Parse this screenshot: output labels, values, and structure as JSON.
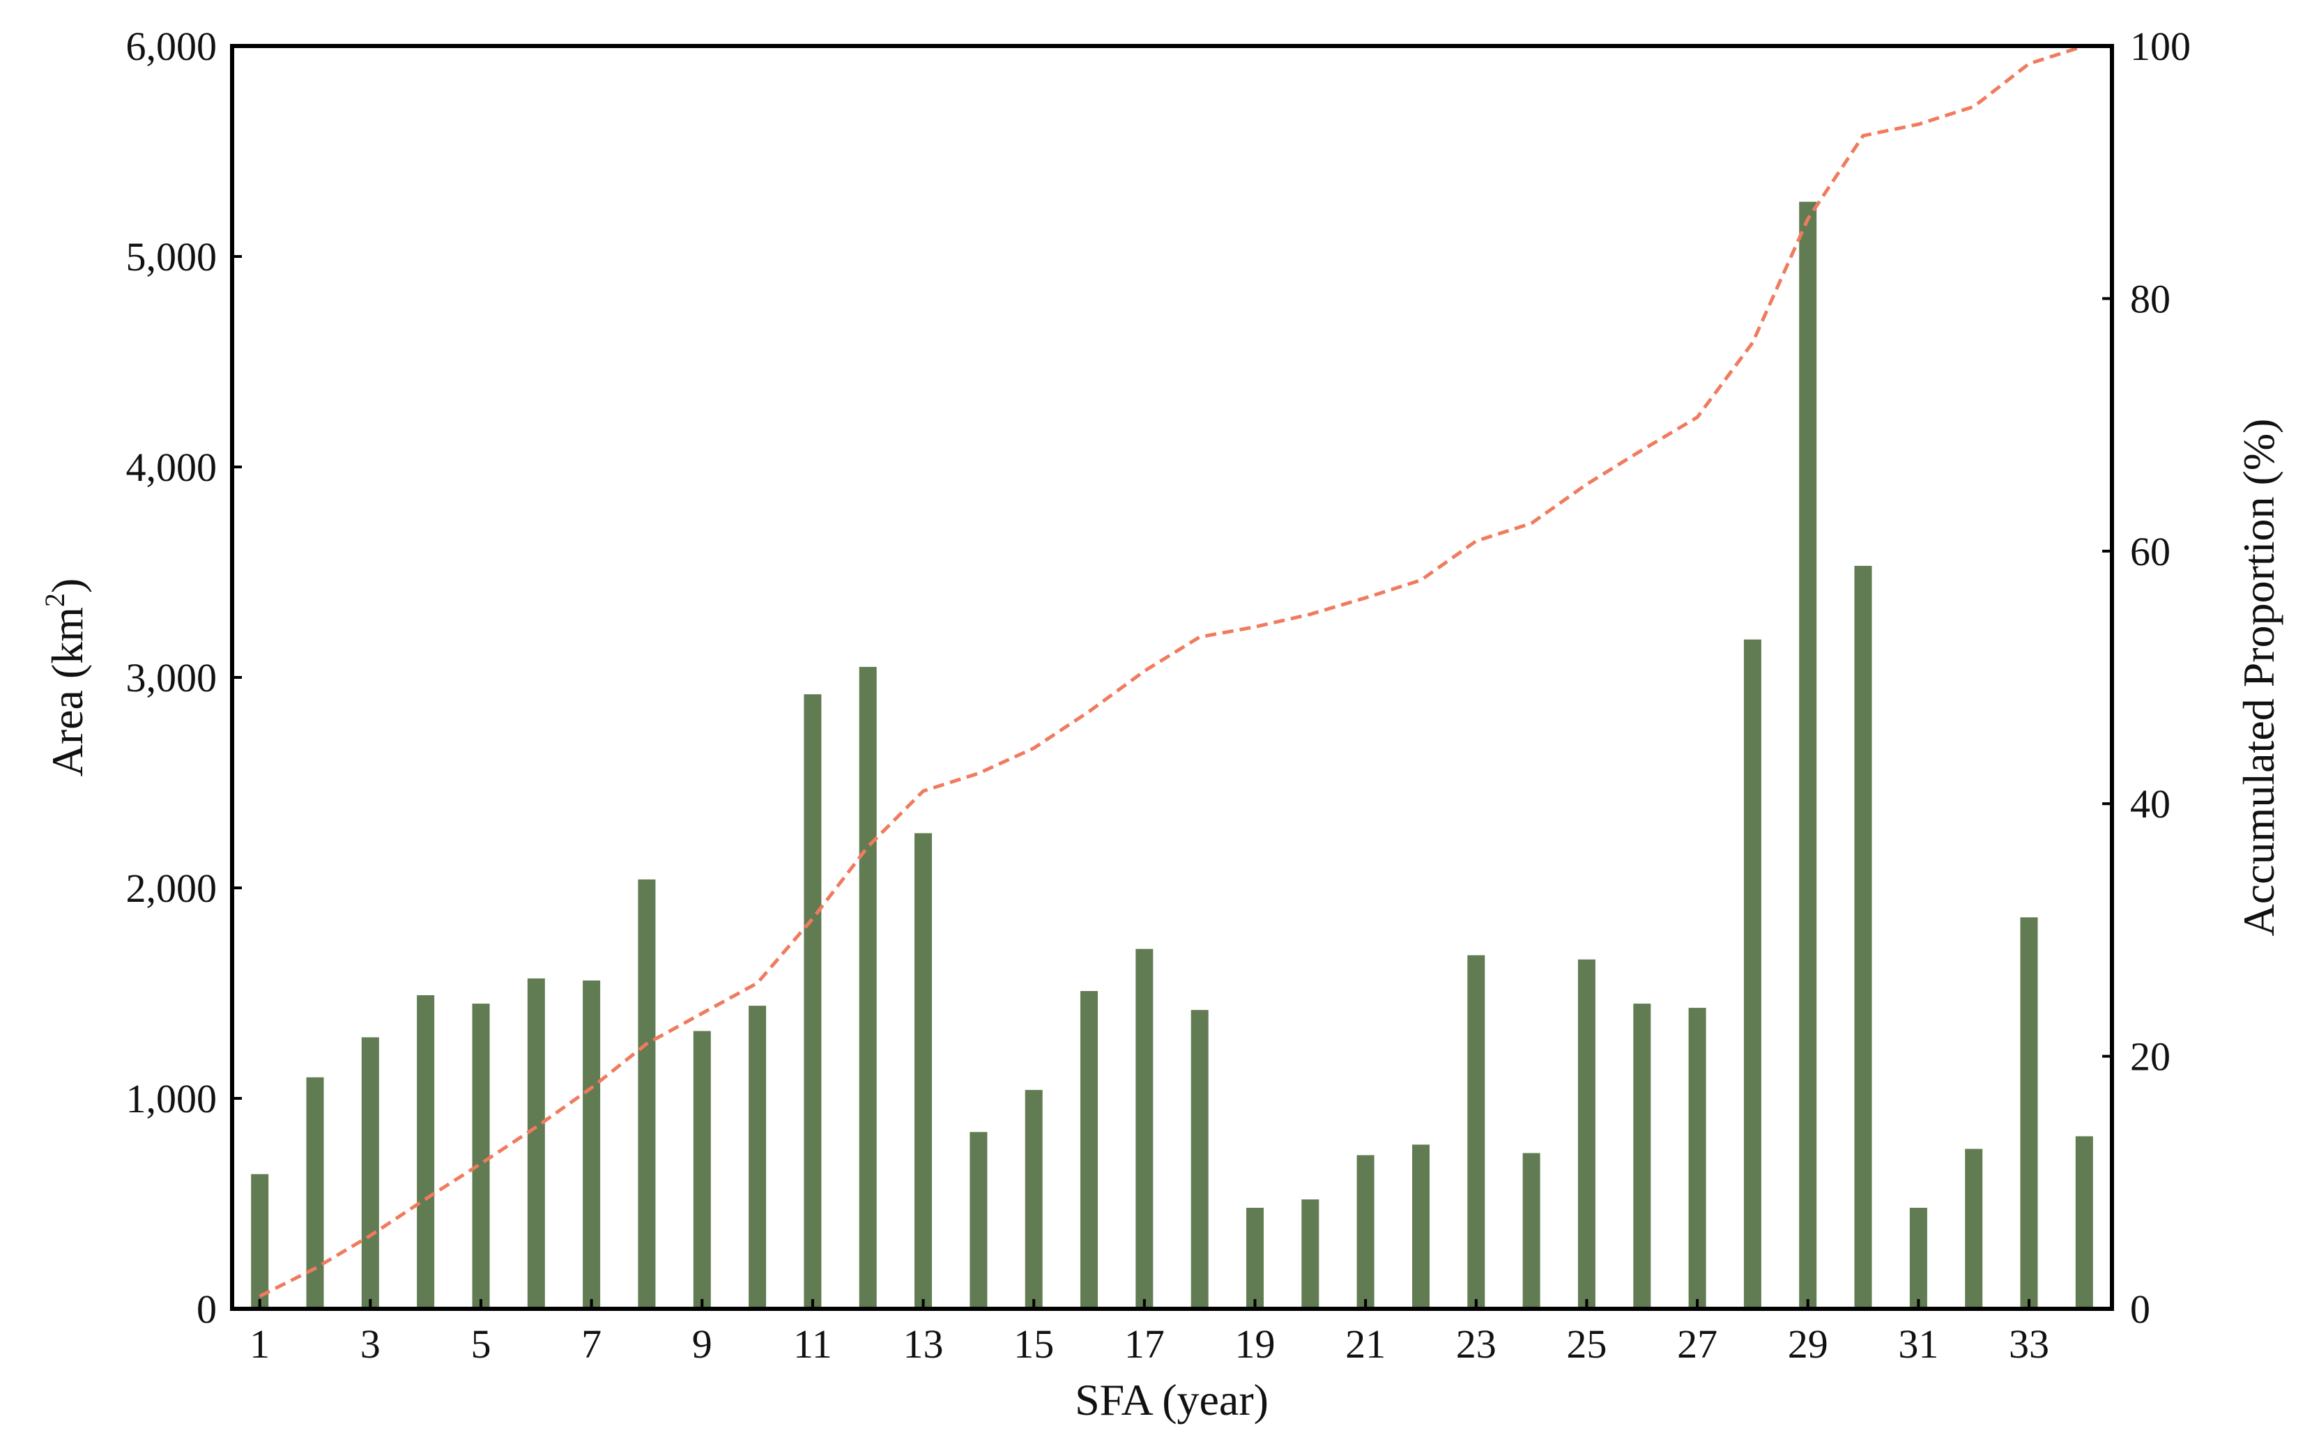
{
  "chart_data": {
    "type": "bar",
    "xlabel": "SFA (year)",
    "ylabel": "Area (km",
    "ylabel_sup": "2",
    "ylabel_close": ")",
    "y2label": "Accumulated Proportion (%)",
    "ylim": [
      0,
      6000
    ],
    "y2lim": [
      0,
      100
    ],
    "yticks": [
      "0",
      "1,000",
      "2,000",
      "3,000",
      "4,000",
      "5,000",
      "6,000"
    ],
    "y2ticks": [
      "0",
      "20",
      "40",
      "60",
      "80",
      "100"
    ],
    "xticks": [
      "1",
      "3",
      "5",
      "7",
      "9",
      "11",
      "13",
      "15",
      "17",
      "19",
      "21",
      "23",
      "25",
      "27",
      "29",
      "31",
      "33"
    ],
    "categories": [
      1,
      2,
      3,
      4,
      5,
      6,
      7,
      8,
      9,
      10,
      11,
      12,
      13,
      14,
      15,
      16,
      17,
      18,
      19,
      20,
      21,
      22,
      23,
      24,
      25,
      26,
      27,
      28,
      29,
      30,
      31,
      32,
      33,
      34
    ],
    "bar_color": "#617b52",
    "line_color": "#f07b5e",
    "grid": false,
    "series": [
      {
        "axis": "left",
        "kind": "bar",
        "values": [
          640,
          1100,
          1290,
          1490,
          1450,
          1570,
          1560,
          2040,
          1320,
          1440,
          2920,
          3050,
          2260,
          840,
          1040,
          1510,
          1710,
          1420,
          480,
          520,
          730,
          780,
          1680,
          740,
          1660,
          1450,
          1430,
          3180,
          5260,
          3530,
          480,
          760,
          1860,
          820
        ]
      },
      {
        "axis": "right",
        "kind": "line",
        "style": "dashed",
        "values": [
          1.0,
          3.2,
          5.8,
          8.7,
          11.5,
          14.4,
          17.5,
          21.0,
          23.4,
          25.8,
          30.9,
          36.6,
          41.0,
          42.4,
          44.4,
          47.3,
          50.5,
          53.2,
          54.0,
          55.0,
          56.3,
          57.7,
          60.8,
          62.2,
          65.3,
          68.0,
          70.6,
          76.5,
          86.3,
          92.9,
          93.8,
          95.2,
          98.6,
          100.0
        ]
      }
    ]
  }
}
